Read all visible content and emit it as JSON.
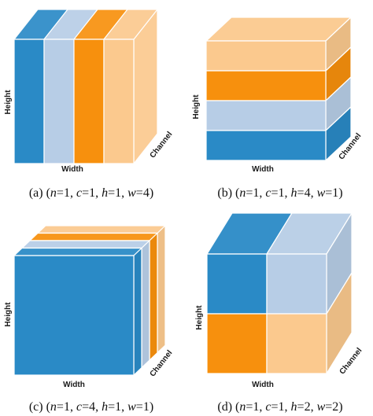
{
  "colors": {
    "blue": "#2a8ac6",
    "light_blue": "#b7cde6",
    "orange": "#f7900d",
    "peach": "#fbc98e"
  },
  "panels": [
    {
      "id": "a",
      "caption": {
        "prefix": "(a) (",
        "n": "1",
        "c": "1",
        "h": "1",
        "w": "4",
        "suffix": ")"
      },
      "labels": {
        "height": "Height",
        "width": "Width",
        "channel": "Channel"
      },
      "layout": "4 vertical stripes across width",
      "order": [
        "blue",
        "light_blue",
        "orange",
        "peach"
      ]
    },
    {
      "id": "b",
      "caption": {
        "prefix": "(b) (",
        "n": "1",
        "c": "1",
        "h": "4",
        "w": "1",
        "suffix": ")"
      },
      "labels": {
        "height": "Height",
        "width": "Width",
        "channel": "Channel"
      },
      "layout": "4 horizontal stripes across height",
      "order": [
        "peach",
        "orange",
        "light_blue",
        "blue"
      ]
    },
    {
      "id": "c",
      "caption": {
        "prefix": "(c) (",
        "n": "1",
        "c": "4",
        "h": "1",
        "w": "1",
        "suffix": ")"
      },
      "labels": {
        "height": "Height",
        "width": "Width",
        "channel": "Channel"
      },
      "layout": "4 slabs stacked along channel",
      "order": [
        "blue",
        "light_blue",
        "orange",
        "peach"
      ]
    },
    {
      "id": "d",
      "caption": {
        "prefix": "(d) (",
        "n": "1",
        "c": "1",
        "h": "2",
        "w": "2",
        "suffix": ")"
      },
      "labels": {
        "height": "Height",
        "width": "Width",
        "channel": "Channel"
      },
      "layout": "2x2 grid of quadrants",
      "order": [
        "blue",
        "light_blue",
        "orange",
        "peach"
      ]
    }
  ]
}
